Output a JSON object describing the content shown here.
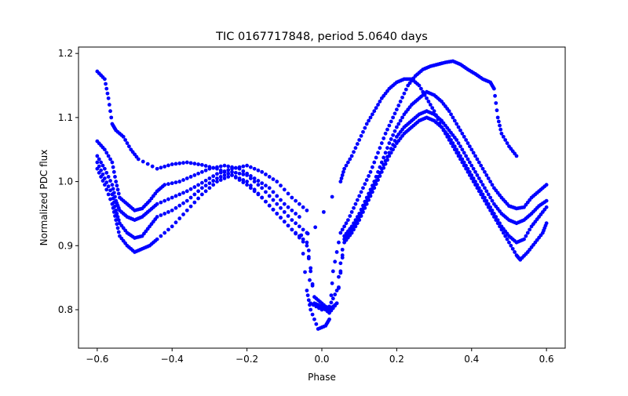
{
  "chart_data": {
    "type": "scatter",
    "title": "TIC 0167717848, period 5.0640 days",
    "xlabel": "Phase",
    "ylabel": "Normalized PDC flux",
    "xlim": [
      -0.65,
      0.65
    ],
    "ylim": [
      0.74,
      1.21
    ],
    "xticks": [
      -0.6,
      -0.4,
      -0.2,
      0.0,
      0.2,
      0.4,
      0.6
    ],
    "xtick_labels": [
      "−0.6",
      "−0.4",
      "−0.2",
      "0.0",
      "0.2",
      "0.4",
      "0.6"
    ],
    "yticks": [
      0.8,
      0.9,
      1.0,
      1.1,
      1.2
    ],
    "ytick_labels": [
      "0.8",
      "0.9",
      "1.0",
      "1.1",
      "1.2"
    ],
    "grid": false,
    "marker_color": "#0000ff",
    "series": [
      {
        "points": [
          [
            -0.6,
            1.172
          ],
          [
            -0.58,
            1.16
          ],
          [
            -0.57,
            1.13
          ],
          [
            -0.56,
            1.09
          ],
          [
            -0.55,
            1.08
          ],
          [
            -0.53,
            1.07
          ],
          [
            -0.51,
            1.05
          ],
          [
            -0.49,
            1.035
          ],
          [
            -0.44,
            1.02
          ],
          [
            -0.4,
            1.027
          ],
          [
            -0.36,
            1.03
          ],
          [
            -0.32,
            1.026
          ],
          [
            -0.28,
            1.02
          ],
          [
            -0.24,
            1.01
          ],
          [
            -0.2,
            0.995
          ],
          [
            -0.16,
            0.975
          ],
          [
            -0.12,
            0.95
          ],
          [
            -0.08,
            0.925
          ],
          [
            -0.04,
            0.905
          ],
          [
            0.05,
            1.0
          ],
          [
            0.06,
            1.02
          ],
          [
            0.08,
            1.04
          ],
          [
            0.1,
            1.065
          ],
          [
            0.12,
            1.09
          ],
          [
            0.14,
            1.11
          ],
          [
            0.16,
            1.13
          ],
          [
            0.18,
            1.145
          ],
          [
            0.2,
            1.155
          ],
          [
            0.22,
            1.16
          ],
          [
            0.24,
            1.16
          ],
          [
            0.26,
            1.15
          ],
          [
            0.28,
            1.13
          ],
          [
            0.3,
            1.11
          ],
          [
            0.32,
            1.085
          ],
          [
            0.34,
            1.065
          ],
          [
            0.36,
            1.045
          ],
          [
            0.38,
            1.025
          ],
          [
            0.4,
            1.005
          ],
          [
            0.42,
            0.985
          ],
          [
            0.44,
            0.965
          ],
          [
            0.46,
            0.945
          ],
          [
            0.48,
            0.925
          ],
          [
            0.5,
            0.905
          ],
          [
            0.52,
            0.885
          ],
          [
            0.53,
            0.878
          ],
          [
            0.55,
            0.89
          ],
          [
            0.57,
            0.905
          ],
          [
            0.59,
            0.92
          ],
          [
            0.6,
            0.935
          ]
        ]
      },
      {
        "points": [
          [
            -0.6,
            1.063
          ],
          [
            -0.58,
            1.05
          ],
          [
            -0.56,
            1.03
          ],
          [
            -0.55,
            1.0
          ],
          [
            -0.54,
            0.975
          ],
          [
            -0.52,
            0.965
          ],
          [
            -0.5,
            0.955
          ],
          [
            -0.48,
            0.958
          ],
          [
            -0.46,
            0.97
          ],
          [
            -0.44,
            0.985
          ],
          [
            -0.42,
            0.995
          ],
          [
            -0.38,
            1.0
          ],
          [
            -0.34,
            1.01
          ],
          [
            -0.3,
            1.02
          ],
          [
            -0.26,
            1.025
          ],
          [
            -0.22,
            1.02
          ],
          [
            -0.18,
            1.005
          ],
          [
            -0.14,
            0.99
          ],
          [
            -0.1,
            0.965
          ],
          [
            -0.06,
            0.945
          ],
          [
            -0.04,
            0.83
          ],
          [
            -0.03,
            0.8
          ],
          [
            -0.01,
            0.77
          ],
          [
            0.01,
            0.775
          ],
          [
            0.02,
            0.785
          ],
          [
            0.03,
            0.86
          ],
          [
            0.05,
            0.92
          ],
          [
            0.07,
            0.94
          ],
          [
            0.09,
            0.965
          ],
          [
            0.11,
            0.99
          ],
          [
            0.13,
            1.015
          ],
          [
            0.15,
            1.045
          ],
          [
            0.17,
            1.075
          ],
          [
            0.19,
            1.1
          ],
          [
            0.21,
            1.125
          ],
          [
            0.23,
            1.15
          ],
          [
            0.25,
            1.165
          ],
          [
            0.27,
            1.175
          ],
          [
            0.29,
            1.18
          ],
          [
            0.31,
            1.183
          ],
          [
            0.33,
            1.186
          ],
          [
            0.35,
            1.188
          ],
          [
            0.37,
            1.183
          ],
          [
            0.39,
            1.175
          ],
          [
            0.41,
            1.168
          ],
          [
            0.43,
            1.16
          ],
          [
            0.45,
            1.155
          ],
          [
            0.46,
            1.145
          ],
          [
            0.47,
            1.1
          ],
          [
            0.48,
            1.075
          ],
          [
            0.5,
            1.055
          ],
          [
            0.52,
            1.04
          ]
        ]
      },
      {
        "points": [
          [
            -0.6,
            1.04
          ],
          [
            -0.58,
            1.02
          ],
          [
            -0.56,
            0.995
          ],
          [
            -0.55,
            0.97
          ],
          [
            -0.54,
            0.955
          ],
          [
            -0.52,
            0.945
          ],
          [
            -0.5,
            0.94
          ],
          [
            -0.48,
            0.945
          ],
          [
            -0.46,
            0.955
          ],
          [
            -0.44,
            0.965
          ],
          [
            -0.4,
            0.975
          ],
          [
            -0.36,
            0.985
          ],
          [
            -0.32,
            0.998
          ],
          [
            -0.28,
            1.012
          ],
          [
            -0.24,
            1.02
          ],
          [
            -0.2,
            1.025
          ],
          [
            -0.16,
            1.015
          ],
          [
            -0.12,
            1.0
          ],
          [
            -0.08,
            0.975
          ],
          [
            -0.04,
            0.955
          ],
          [
            -0.03,
            0.81
          ],
          [
            0.0,
            0.8
          ],
          [
            0.02,
            0.805
          ],
          [
            0.04,
            0.83
          ],
          [
            0.06,
            0.915
          ],
          [
            0.08,
            0.93
          ],
          [
            0.1,
            0.95
          ],
          [
            0.12,
            0.975
          ],
          [
            0.14,
            1.0
          ],
          [
            0.16,
            1.03
          ],
          [
            0.18,
            1.06
          ],
          [
            0.2,
            1.085
          ],
          [
            0.22,
            1.105
          ],
          [
            0.24,
            1.12
          ],
          [
            0.26,
            1.13
          ],
          [
            0.28,
            1.14
          ],
          [
            0.3,
            1.135
          ],
          [
            0.32,
            1.125
          ],
          [
            0.34,
            1.11
          ],
          [
            0.36,
            1.09
          ],
          [
            0.38,
            1.07
          ],
          [
            0.4,
            1.05
          ],
          [
            0.42,
            1.03
          ],
          [
            0.44,
            1.01
          ],
          [
            0.46,
            0.99
          ],
          [
            0.48,
            0.975
          ],
          [
            0.5,
            0.962
          ],
          [
            0.52,
            0.958
          ],
          [
            0.54,
            0.96
          ],
          [
            0.56,
            0.975
          ],
          [
            0.58,
            0.985
          ],
          [
            0.6,
            0.995
          ]
        ]
      },
      {
        "points": [
          [
            -0.6,
            1.03
          ],
          [
            -0.58,
            1.005
          ],
          [
            -0.56,
            0.98
          ],
          [
            -0.55,
            0.955
          ],
          [
            -0.54,
            0.935
          ],
          [
            -0.52,
            0.92
          ],
          [
            -0.5,
            0.912
          ],
          [
            -0.48,
            0.915
          ],
          [
            -0.46,
            0.93
          ],
          [
            -0.44,
            0.945
          ],
          [
            -0.4,
            0.955
          ],
          [
            -0.36,
            0.97
          ],
          [
            -0.32,
            0.99
          ],
          [
            -0.28,
            1.005
          ],
          [
            -0.24,
            1.015
          ],
          [
            -0.2,
            1.01
          ],
          [
            -0.16,
            0.99
          ],
          [
            -0.12,
            0.965
          ],
          [
            -0.08,
            0.94
          ],
          [
            -0.04,
            0.92
          ],
          [
            -0.02,
            0.81
          ],
          [
            0.0,
            0.805
          ],
          [
            0.02,
            0.795
          ],
          [
            0.04,
            0.81
          ],
          [
            0.06,
            0.91
          ],
          [
            0.08,
            0.925
          ],
          [
            0.1,
            0.945
          ],
          [
            0.12,
            0.97
          ],
          [
            0.14,
            0.995
          ],
          [
            0.16,
            1.02
          ],
          [
            0.18,
            1.045
          ],
          [
            0.2,
            1.07
          ],
          [
            0.22,
            1.085
          ],
          [
            0.24,
            1.095
          ],
          [
            0.26,
            1.105
          ],
          [
            0.28,
            1.11
          ],
          [
            0.3,
            1.105
          ],
          [
            0.32,
            1.095
          ],
          [
            0.34,
            1.08
          ],
          [
            0.36,
            1.065
          ],
          [
            0.38,
            1.045
          ],
          [
            0.4,
            1.025
          ],
          [
            0.42,
            1.005
          ],
          [
            0.44,
            0.985
          ],
          [
            0.46,
            0.965
          ],
          [
            0.48,
            0.95
          ],
          [
            0.5,
            0.94
          ],
          [
            0.52,
            0.935
          ],
          [
            0.54,
            0.94
          ],
          [
            0.56,
            0.95
          ],
          [
            0.58,
            0.962
          ],
          [
            0.6,
            0.97
          ]
        ]
      },
      {
        "points": [
          [
            -0.6,
            1.02
          ],
          [
            -0.58,
            0.995
          ],
          [
            -0.56,
            0.965
          ],
          [
            -0.55,
            0.94
          ],
          [
            -0.54,
            0.915
          ],
          [
            -0.52,
            0.9
          ],
          [
            -0.5,
            0.89
          ],
          [
            -0.48,
            0.895
          ],
          [
            -0.46,
            0.9
          ],
          [
            -0.44,
            0.91
          ],
          [
            -0.4,
            0.93
          ],
          [
            -0.36,
            0.955
          ],
          [
            -0.32,
            0.98
          ],
          [
            -0.28,
            1.0
          ],
          [
            -0.24,
            1.01
          ],
          [
            -0.2,
            1.0
          ],
          [
            -0.16,
            0.975
          ],
          [
            -0.12,
            0.95
          ],
          [
            -0.08,
            0.925
          ],
          [
            -0.04,
            0.9
          ],
          [
            -0.02,
            0.82
          ],
          [
            0.0,
            0.81
          ],
          [
            0.02,
            0.8
          ],
          [
            0.04,
            0.81
          ],
          [
            0.06,
            0.905
          ],
          [
            0.08,
            0.92
          ],
          [
            0.1,
            0.94
          ],
          [
            0.12,
            0.965
          ],
          [
            0.14,
            0.99
          ],
          [
            0.16,
            1.015
          ],
          [
            0.18,
            1.04
          ],
          [
            0.2,
            1.06
          ],
          [
            0.22,
            1.075
          ],
          [
            0.24,
            1.085
          ],
          [
            0.26,
            1.095
          ],
          [
            0.28,
            1.1
          ],
          [
            0.3,
            1.095
          ],
          [
            0.32,
            1.085
          ],
          [
            0.34,
            1.07
          ],
          [
            0.36,
            1.05
          ],
          [
            0.38,
            1.03
          ],
          [
            0.4,
            1.01
          ],
          [
            0.42,
            0.99
          ],
          [
            0.44,
            0.97
          ],
          [
            0.46,
            0.95
          ],
          [
            0.48,
            0.93
          ],
          [
            0.5,
            0.915
          ],
          [
            0.52,
            0.905
          ],
          [
            0.54,
            0.91
          ],
          [
            0.56,
            0.93
          ],
          [
            0.58,
            0.945
          ],
          [
            0.6,
            0.96
          ]
        ]
      }
    ]
  }
}
